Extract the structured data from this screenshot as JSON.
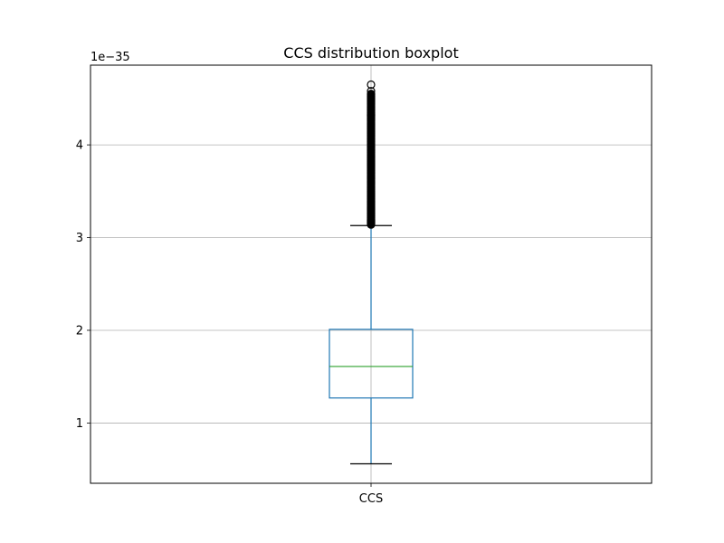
{
  "chart_data": {
    "type": "boxplot",
    "title": "CCS distribution boxplot",
    "xlabel": "",
    "ylabel": "",
    "categories": [
      "CCS"
    ],
    "y_offset_label": "1e−35",
    "y_scale_factor": 1e-35,
    "ylim": [
      0.35,
      4.86
    ],
    "yticks": [
      1,
      2,
      3,
      4
    ],
    "ytick_labels": [
      "1",
      "2",
      "3",
      "4"
    ],
    "grid": true,
    "box": {
      "whisker_low": 0.56,
      "q1": 1.27,
      "median": 1.61,
      "q3": 2.01,
      "whisker_high": 3.13
    },
    "outliers": [
      3.14,
      3.17,
      3.2,
      3.24,
      3.28,
      3.32,
      3.36,
      3.4,
      3.45,
      3.5,
      3.55,
      3.6,
      3.65,
      3.7,
      3.75,
      3.8,
      3.85,
      3.9,
      3.95,
      4.0,
      4.05,
      4.1,
      4.15,
      4.2,
      4.25,
      4.3,
      4.35,
      4.4,
      4.45,
      4.5,
      4.55,
      4.58,
      4.65
    ],
    "colors": {
      "box": "#1f77b4",
      "median": "#2ca02c",
      "caps": "#000000",
      "outliers": "#000000",
      "grid": "#b0b0b0"
    }
  }
}
